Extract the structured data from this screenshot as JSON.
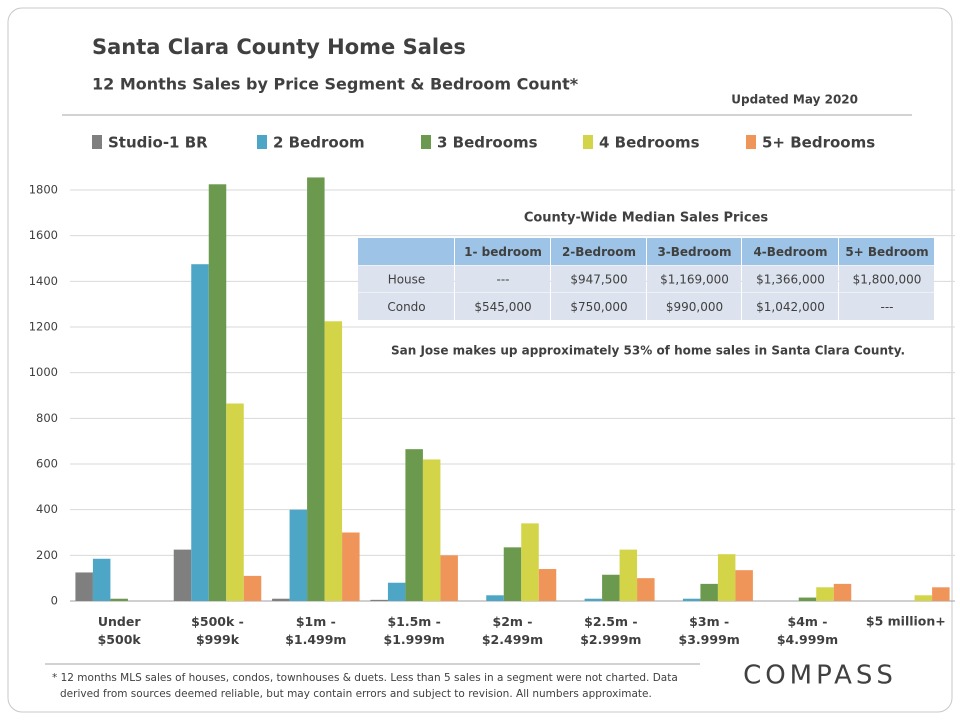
{
  "chart_data": {
    "type": "bar",
    "title": "Santa Clara County Home Sales",
    "subtitle": "12 Months Sales by Price Segment & Bedroom Count*",
    "categories": [
      "Under\n$500k",
      "$500k -\n$999k",
      "$1m -\n$1.499m",
      "$1.5m -\n$1.999m",
      "$2m -\n$2.499m",
      "$2.5m -\n$2.999m",
      "$3m -\n$3.999m",
      "$4m -\n$4.999m",
      "$5 million+"
    ],
    "series": [
      {
        "name": "Studio-1 BR",
        "color": "#7f7f7f",
        "text_color": "#595959",
        "values": [
          125,
          225,
          10,
          5,
          null,
          null,
          null,
          null,
          null
        ]
      },
      {
        "name": "2 Bedroom",
        "color": "#4ea6c6",
        "text_color": "#2e5a88",
        "values": [
          185,
          1475,
          400,
          80,
          25,
          10,
          10,
          null,
          null
        ]
      },
      {
        "name": "3 Bedrooms",
        "color": "#6b9a4f",
        "text_color": "#5b8a3c",
        "values": [
          10,
          1825,
          1855,
          665,
          235,
          115,
          75,
          15,
          null
        ]
      },
      {
        "name": "4 Bedrooms",
        "color": "#d3d448",
        "text_color": "#c6c636",
        "values": [
          null,
          865,
          1225,
          620,
          340,
          225,
          205,
          60,
          25
        ]
      },
      {
        "name": "5+ Bedrooms",
        "color": "#f0955a",
        "text_color": "#ef8a48",
        "values": [
          null,
          110,
          300,
          200,
          140,
          100,
          135,
          75,
          60
        ]
      }
    ],
    "ylim": [
      0,
      1800
    ],
    "yticks": [
      0,
      200,
      400,
      600,
      800,
      1000,
      1200,
      1400,
      1600,
      1800
    ],
    "grid": true
  },
  "updated": "Updated May 2020",
  "table": {
    "title": "County-Wide  Median Sales Prices",
    "columns": [
      "",
      "1- bedroom",
      "2-Bedroom",
      "3-Bedroom",
      "4-Bedroom",
      "5+ Bedroom"
    ],
    "rows": [
      [
        "House",
        "---",
        "$947,500",
        "$1,169,000",
        "$1,366,000",
        "$1,800,000"
      ],
      [
        "Condo",
        "$545,000",
        "$750,000",
        "$990,000",
        "$1,042,000",
        "---"
      ]
    ]
  },
  "note": "San Jose makes up approximately 53% of home sales in Santa Clara County.",
  "footnote": [
    "* 12 months MLS sales of houses, condos, townhouses & duets. Less than 5 sales in a segment were not charted. Data",
    "derived from sources deemed reliable, but may contain errors and subject to revision. All numbers approximate."
  ],
  "logo": "COMPASS"
}
